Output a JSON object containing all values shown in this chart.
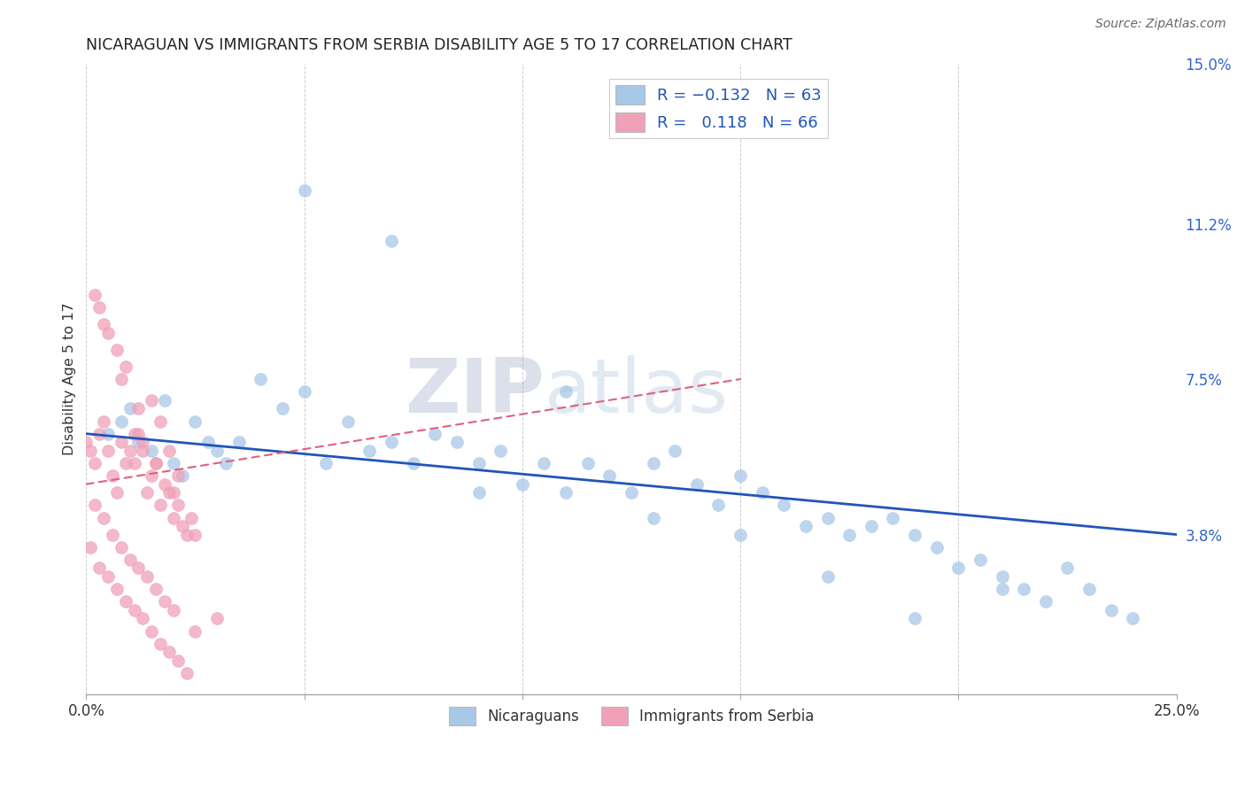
{
  "title": "NICARAGUAN VS IMMIGRANTS FROM SERBIA DISABILITY AGE 5 TO 17 CORRELATION CHART",
  "source": "Source: ZipAtlas.com",
  "ylabel": "Disability Age 5 to 17",
  "xlim": [
    0.0,
    0.25
  ],
  "ylim": [
    0.0,
    0.15
  ],
  "x_ticks": [
    0.0,
    0.05,
    0.1,
    0.15,
    0.2,
    0.25
  ],
  "x_tick_labels": [
    "0.0%",
    "",
    "",
    "",
    "",
    "25.0%"
  ],
  "y_tick_labels_right": [
    "3.8%",
    "7.5%",
    "11.2%",
    "15.0%"
  ],
  "y_tick_vals_right": [
    0.038,
    0.075,
    0.112,
    0.15
  ],
  "blue_color": "#a8c8e8",
  "pink_color": "#f0a0b8",
  "blue_line_color": "#2255bb",
  "pink_line_color": "#e06080",
  "watermark_zip": "ZIP",
  "watermark_atlas": "atlas",
  "blue_scatter_x": [
    0.005,
    0.008,
    0.01,
    0.012,
    0.015,
    0.018,
    0.02,
    0.022,
    0.025,
    0.028,
    0.03,
    0.032,
    0.035,
    0.04,
    0.045,
    0.05,
    0.055,
    0.06,
    0.065,
    0.07,
    0.075,
    0.08,
    0.085,
    0.09,
    0.095,
    0.1,
    0.105,
    0.11,
    0.115,
    0.12,
    0.125,
    0.13,
    0.135,
    0.14,
    0.145,
    0.15,
    0.155,
    0.16,
    0.165,
    0.17,
    0.175,
    0.18,
    0.185,
    0.19,
    0.195,
    0.2,
    0.205,
    0.21,
    0.215,
    0.22,
    0.225,
    0.23,
    0.235,
    0.24,
    0.05,
    0.07,
    0.09,
    0.11,
    0.13,
    0.15,
    0.17,
    0.19,
    0.21
  ],
  "blue_scatter_y": [
    0.062,
    0.065,
    0.068,
    0.06,
    0.058,
    0.07,
    0.055,
    0.052,
    0.065,
    0.06,
    0.058,
    0.055,
    0.06,
    0.075,
    0.068,
    0.072,
    0.055,
    0.065,
    0.058,
    0.06,
    0.055,
    0.062,
    0.06,
    0.055,
    0.058,
    0.05,
    0.055,
    0.048,
    0.055,
    0.052,
    0.048,
    0.055,
    0.058,
    0.05,
    0.045,
    0.052,
    0.048,
    0.045,
    0.04,
    0.042,
    0.038,
    0.04,
    0.042,
    0.038,
    0.035,
    0.03,
    0.032,
    0.028,
    0.025,
    0.022,
    0.03,
    0.025,
    0.02,
    0.018,
    0.12,
    0.108,
    0.048,
    0.072,
    0.042,
    0.038,
    0.028,
    0.018,
    0.025
  ],
  "pink_scatter_x": [
    0.0,
    0.001,
    0.002,
    0.003,
    0.004,
    0.005,
    0.006,
    0.007,
    0.008,
    0.009,
    0.01,
    0.011,
    0.012,
    0.013,
    0.014,
    0.015,
    0.016,
    0.017,
    0.018,
    0.019,
    0.02,
    0.021,
    0.022,
    0.023,
    0.024,
    0.025,
    0.003,
    0.005,
    0.007,
    0.009,
    0.011,
    0.013,
    0.015,
    0.017,
    0.019,
    0.021,
    0.002,
    0.004,
    0.006,
    0.008,
    0.01,
    0.012,
    0.014,
    0.016,
    0.018,
    0.02,
    0.001,
    0.003,
    0.005,
    0.007,
    0.009,
    0.011,
    0.013,
    0.015,
    0.017,
    0.019,
    0.021,
    0.023,
    0.025,
    0.03,
    0.002,
    0.004,
    0.008,
    0.012,
    0.016,
    0.02
  ],
  "pink_scatter_y": [
    0.06,
    0.058,
    0.055,
    0.062,
    0.065,
    0.058,
    0.052,
    0.048,
    0.06,
    0.055,
    0.058,
    0.055,
    0.062,
    0.06,
    0.048,
    0.052,
    0.055,
    0.045,
    0.05,
    0.048,
    0.042,
    0.045,
    0.04,
    0.038,
    0.042,
    0.038,
    0.092,
    0.086,
    0.082,
    0.078,
    0.062,
    0.058,
    0.07,
    0.065,
    0.058,
    0.052,
    0.045,
    0.042,
    0.038,
    0.035,
    0.032,
    0.03,
    0.028,
    0.025,
    0.022,
    0.02,
    0.035,
    0.03,
    0.028,
    0.025,
    0.022,
    0.02,
    0.018,
    0.015,
    0.012,
    0.01,
    0.008,
    0.005,
    0.015,
    0.018,
    0.095,
    0.088,
    0.075,
    0.068,
    0.055,
    0.048
  ],
  "blue_line_x": [
    0.0,
    0.25
  ],
  "blue_line_y": [
    0.062,
    0.038
  ],
  "pink_line_x": [
    0.0,
    0.15
  ],
  "pink_line_y": [
    0.05,
    0.075
  ],
  "grid_color": "#cccccc",
  "background_color": "#ffffff"
}
